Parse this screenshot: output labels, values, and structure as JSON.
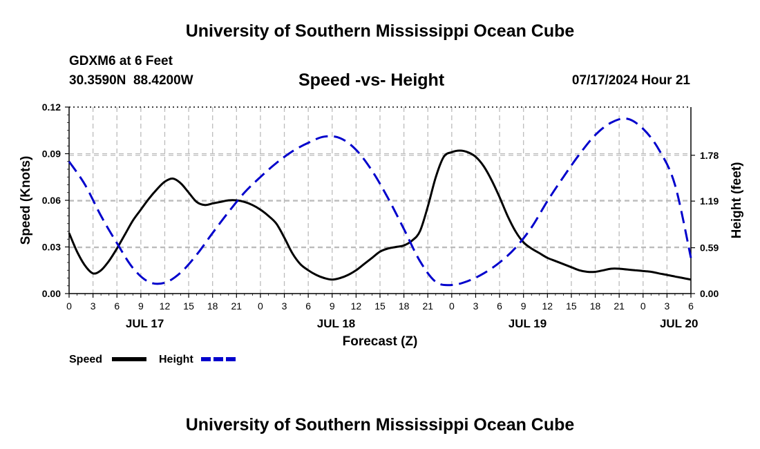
{
  "page": {
    "title_top": "University of Southern Mississippi Ocean Cube",
    "title_bottom": "University of Southern Mississippi Ocean Cube",
    "station": "GDXM6 at 6 Feet",
    "coords": "30.3590N  88.4200W",
    "datetime": "07/17/2024 Hour 21"
  },
  "colors": {
    "speed": "#000000",
    "height": "#0000cc",
    "grid": "#bbbbbb"
  },
  "chart_data": {
    "type": "line",
    "title": "Speed -vs- Height",
    "xlabel": "Forecast (Z)",
    "ylabel": "Speed (Knots)",
    "y2label": "Height (feet)",
    "x_unit": "hours since JUL 17 00Z",
    "xlim": [
      0,
      78
    ],
    "ylim": [
      0,
      0.12
    ],
    "y2lim": [
      0,
      2.4
    ],
    "x_ticks": [
      0,
      3,
      6,
      9,
      12,
      15,
      18,
      21,
      24,
      27,
      30,
      33,
      36,
      39,
      42,
      45,
      48,
      51,
      54,
      57,
      60,
      63,
      66,
      69,
      72,
      75,
      78
    ],
    "x_tick_labels": [
      "0",
      "3",
      "6",
      "9",
      "12",
      "15",
      "18",
      "21",
      "0",
      "3",
      "6",
      "9",
      "12",
      "15",
      "18",
      "21",
      "0",
      "3",
      "6",
      "9",
      "12",
      "15",
      "18",
      "21",
      "0",
      "3",
      "6"
    ],
    "date_labels": [
      {
        "x": 9.5,
        "label": "JUL 17"
      },
      {
        "x": 33.5,
        "label": "JUL 18"
      },
      {
        "x": 57.5,
        "label": "JUL 19"
      },
      {
        "x": 76.5,
        "label": "JUL 20"
      }
    ],
    "y_ticks": [
      0,
      0.03,
      0.06,
      0.09,
      0.12
    ],
    "y_tick_labels": [
      "0.00",
      "0.03",
      "0.06",
      "0.09",
      "0.12"
    ],
    "y2_ticks": [
      0,
      0.59,
      1.19,
      1.78
    ],
    "y2_tick_labels": [
      "0.00",
      "0.59",
      "1.19",
      "1.78"
    ],
    "series": [
      {
        "name": "Speed",
        "axis": "left",
        "style": "solid",
        "x": [
          0,
          1,
          2,
          3,
          4,
          5,
          6,
          7,
          8,
          9,
          10,
          11,
          12,
          13,
          14,
          15,
          16,
          17,
          18,
          19,
          20,
          21,
          22,
          23,
          24,
          25,
          26,
          27,
          28,
          29,
          30,
          31,
          32,
          33,
          34,
          35,
          36,
          37,
          38,
          39,
          40,
          41,
          42,
          43,
          44,
          45,
          46,
          47,
          48,
          49,
          50,
          51,
          52,
          53,
          54,
          55,
          56,
          57,
          58,
          59,
          60,
          61,
          62,
          63,
          64,
          65,
          66,
          67,
          68,
          69,
          70,
          71,
          72,
          73,
          74,
          75,
          76,
          77,
          78
        ],
        "values": [
          0.039,
          0.027,
          0.018,
          0.013,
          0.015,
          0.021,
          0.029,
          0.038,
          0.047,
          0.054,
          0.061,
          0.067,
          0.072,
          0.074,
          0.071,
          0.065,
          0.059,
          0.057,
          0.058,
          0.059,
          0.06,
          0.06,
          0.059,
          0.057,
          0.054,
          0.05,
          0.045,
          0.036,
          0.026,
          0.019,
          0.015,
          0.012,
          0.01,
          0.009,
          0.01,
          0.012,
          0.015,
          0.019,
          0.023,
          0.027,
          0.029,
          0.03,
          0.031,
          0.034,
          0.04,
          0.056,
          0.075,
          0.088,
          0.091,
          0.092,
          0.091,
          0.088,
          0.082,
          0.073,
          0.062,
          0.05,
          0.04,
          0.033,
          0.029,
          0.026,
          0.023,
          0.021,
          0.019,
          0.017,
          0.015,
          0.014,
          0.014,
          0.015,
          0.016,
          0.016,
          0.0155,
          0.015,
          0.0145,
          0.014,
          0.013,
          0.012,
          0.011,
          0.01,
          0.009
        ]
      },
      {
        "name": "Height",
        "axis": "right",
        "style": "dashed",
        "x": [
          0,
          2,
          4,
          6,
          8,
          10,
          12,
          14,
          16,
          18,
          20,
          22,
          24,
          26,
          28,
          30,
          32,
          34,
          36,
          38,
          40,
          42,
          44,
          46,
          48,
          50,
          52,
          54,
          56,
          58,
          60,
          62,
          64,
          66,
          68,
          70,
          72,
          74,
          76,
          78
        ],
        "values": [
          1.7,
          1.4,
          1.0,
          0.65,
          0.33,
          0.15,
          0.14,
          0.27,
          0.5,
          0.78,
          1.05,
          1.3,
          1.5,
          1.68,
          1.83,
          1.94,
          2.02,
          2.0,
          1.85,
          1.58,
          1.23,
          0.83,
          0.42,
          0.15,
          0.11,
          0.16,
          0.26,
          0.4,
          0.59,
          0.85,
          1.19,
          1.5,
          1.79,
          2.04,
          2.2,
          2.25,
          2.12,
          1.85,
          1.4,
          0.46
        ]
      }
    ],
    "legend": [
      {
        "label": "Speed",
        "style": "solid"
      },
      {
        "label": "Height",
        "style": "dashed"
      }
    ],
    "legend_position": "bottom-left",
    "grid": true
  }
}
